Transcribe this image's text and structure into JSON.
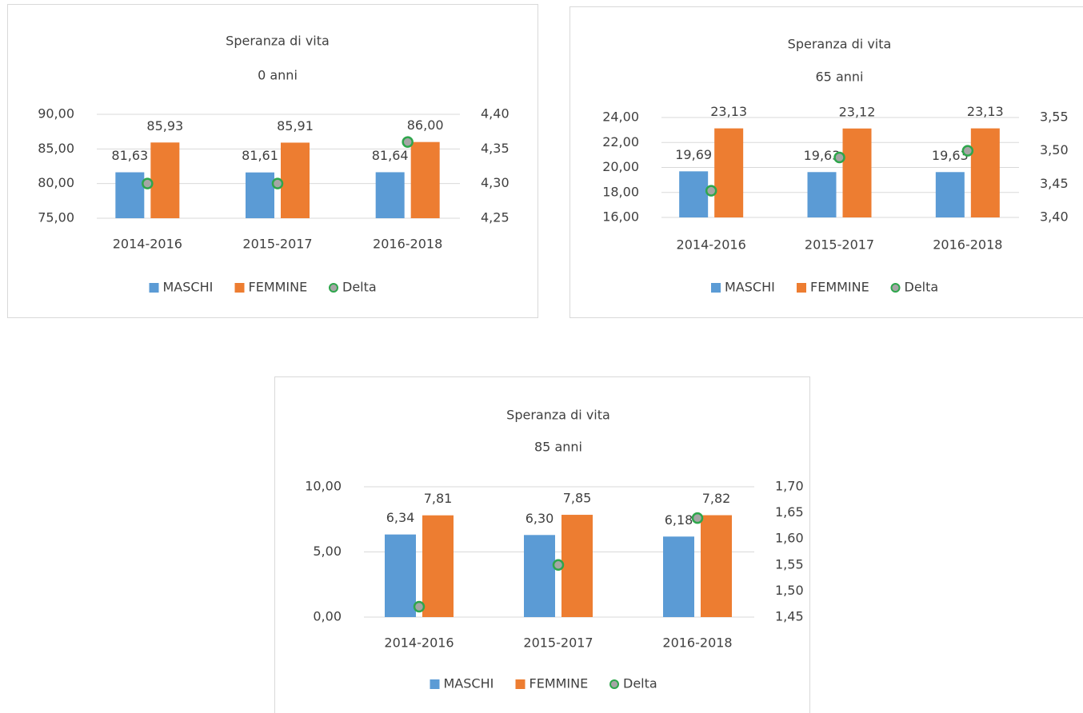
{
  "chart_data": [
    {
      "type": "bar",
      "title": "Speranza di vita",
      "subtitle": "0 anni",
      "categories": [
        "2014-2016",
        "2015-2017",
        "2016-2018"
      ],
      "series": [
        {
          "name": "MASCHI",
          "color": "#5b9bd5",
          "values": [
            81.63,
            81.61,
            81.64
          ],
          "value_labels": [
            "81,63",
            "81,61",
            "81,64"
          ]
        },
        {
          "name": "FEMMINE",
          "color": "#ed7d31",
          "values": [
            85.93,
            85.91,
            86.0
          ],
          "value_labels": [
            "85,93",
            "85,91",
            "86,00"
          ]
        },
        {
          "name": "Delta",
          "type": "scatter",
          "axis": "y2",
          "color": "#a5a5a5",
          "edge_color": "#2ea64c",
          "values": [
            4.3,
            4.3,
            4.36
          ]
        }
      ],
      "ylim": [
        75,
        90
      ],
      "yticks": [
        {
          "value": 75,
          "label": "75,00"
        },
        {
          "value": 80,
          "label": "80,00"
        },
        {
          "value": 85,
          "label": "85,00"
        },
        {
          "value": 90,
          "label": "90,00"
        }
      ],
      "y2lim": [
        4.25,
        4.4
      ],
      "y2ticks": [
        {
          "value": 4.25,
          "label": "4,25"
        },
        {
          "value": 4.3,
          "label": "4,30"
        },
        {
          "value": 4.35,
          "label": "4,35"
        },
        {
          "value": 4.4,
          "label": "4,40"
        }
      ],
      "grid": true,
      "legend": "bottom"
    },
    {
      "type": "bar",
      "title": "Speranza di vita",
      "subtitle": "65 anni",
      "categories": [
        "2014-2016",
        "2015-2017",
        "2016-2018"
      ],
      "series": [
        {
          "name": "MASCHI",
          "color": "#5b9bd5",
          "values": [
            19.69,
            19.63,
            19.63
          ],
          "value_labels": [
            "19,69",
            "19,63",
            "19,63"
          ]
        },
        {
          "name": "FEMMINE",
          "color": "#ed7d31",
          "values": [
            23.13,
            23.12,
            23.13
          ],
          "value_labels": [
            "23,13",
            "23,12",
            "23,13"
          ]
        },
        {
          "name": "Delta",
          "type": "scatter",
          "axis": "y2",
          "color": "#a5a5a5",
          "edge_color": "#2ea64c",
          "values": [
            3.44,
            3.49,
            3.5
          ]
        }
      ],
      "ylim": [
        16,
        24
      ],
      "yticks": [
        {
          "value": 16,
          "label": "16,00"
        },
        {
          "value": 18,
          "label": "18,00"
        },
        {
          "value": 20,
          "label": "20,00"
        },
        {
          "value": 22,
          "label": "22,00"
        },
        {
          "value": 24,
          "label": "24,00"
        }
      ],
      "y2lim": [
        3.4,
        3.55
      ],
      "y2ticks": [
        {
          "value": 3.4,
          "label": "3,40"
        },
        {
          "value": 3.45,
          "label": "3,45"
        },
        {
          "value": 3.5,
          "label": "3,50"
        },
        {
          "value": 3.55,
          "label": "3,55"
        }
      ],
      "grid": true,
      "legend": "bottom"
    },
    {
      "type": "bar",
      "title": "Speranza di vita",
      "subtitle": "85 anni",
      "categories": [
        "2014-2016",
        "2015-2017",
        "2016-2018"
      ],
      "series": [
        {
          "name": "MASCHI",
          "color": "#5b9bd5",
          "values": [
            6.34,
            6.3,
            6.18
          ],
          "value_labels": [
            "6,34",
            "6,30",
            "6,18"
          ]
        },
        {
          "name": "FEMMINE",
          "color": "#ed7d31",
          "values": [
            7.81,
            7.85,
            7.82
          ],
          "value_labels": [
            "7,81",
            "7,85",
            "7,82"
          ]
        },
        {
          "name": "Delta",
          "type": "scatter",
          "axis": "y2",
          "color": "#a5a5a5",
          "edge_color": "#2ea64c",
          "values": [
            1.47,
            1.55,
            1.64
          ]
        }
      ],
      "ylim": [
        0,
        10
      ],
      "yticks": [
        {
          "value": 0,
          "label": "0,00"
        },
        {
          "value": 5,
          "label": "5,00"
        },
        {
          "value": 10,
          "label": "10,00"
        }
      ],
      "y2lim": [
        1.45,
        1.7
      ],
      "y2ticks": [
        {
          "value": 1.45,
          "label": "1,45"
        },
        {
          "value": 1.5,
          "label": "1,50"
        },
        {
          "value": 1.55,
          "label": "1,55"
        },
        {
          "value": 1.6,
          "label": "1,60"
        },
        {
          "value": 1.65,
          "label": "1,65"
        },
        {
          "value": 1.7,
          "label": "1,70"
        }
      ],
      "grid": true,
      "legend": "bottom"
    }
  ]
}
